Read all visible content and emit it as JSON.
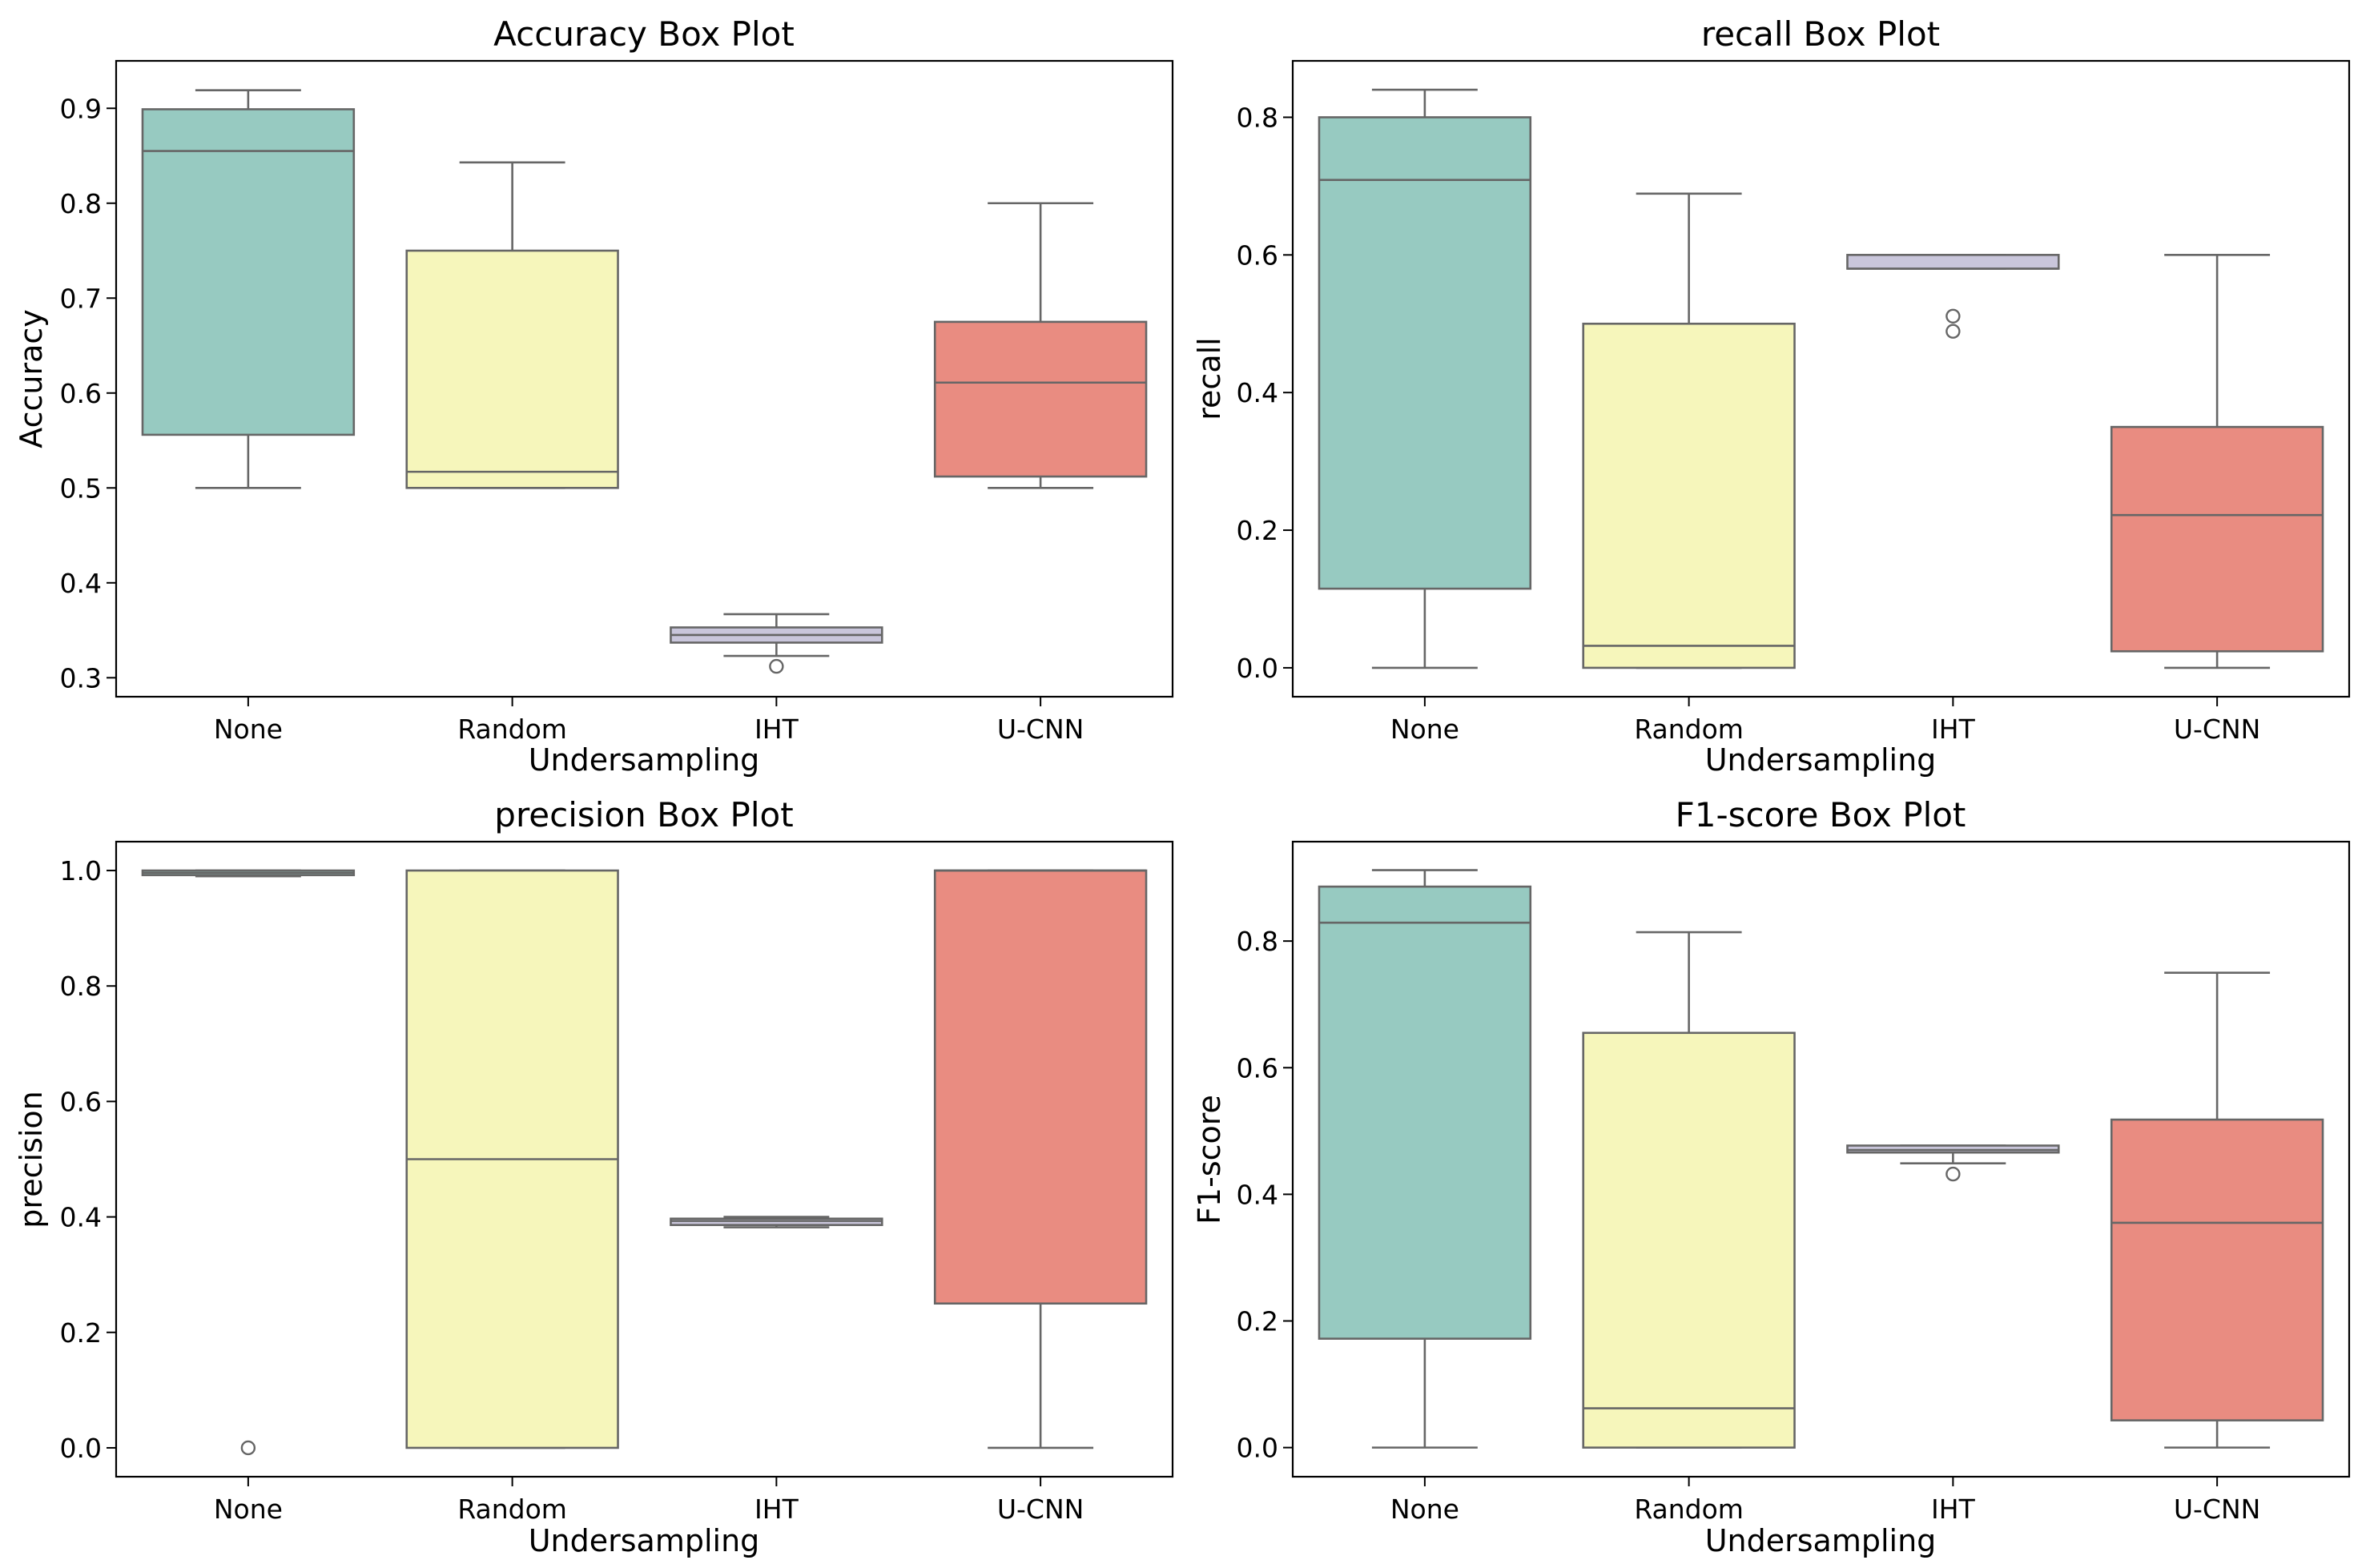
{
  "chart_data": [
    {
      "type": "box",
      "title": "Accuracy Box Plot",
      "xlabel": "Undersampling",
      "ylabel": "Accuracy",
      "categories": [
        "None",
        "Random",
        "IHT",
        "U-CNN"
      ],
      "ylim": [
        0.28,
        0.95
      ],
      "yticks": [
        0.3,
        0.4,
        0.5,
        0.6,
        0.7,
        0.8,
        0.9
      ],
      "ytick_labels": [
        "0.3",
        "0.4",
        "0.5",
        "0.6",
        "0.7",
        "0.8",
        "0.9"
      ],
      "boxes": [
        {
          "whislo": 0.5,
          "q1": 0.556,
          "med": 0.855,
          "q3": 0.899,
          "whishi": 0.919,
          "fliers": []
        },
        {
          "whislo": 0.5,
          "q1": 0.5,
          "med": 0.517,
          "q3": 0.75,
          "whishi": 0.843,
          "fliers": []
        },
        {
          "whislo": 0.323,
          "q1": 0.337,
          "med": 0.345,
          "q3": 0.353,
          "whishi": 0.367,
          "fliers": [
            0.312
          ]
        },
        {
          "whislo": 0.5,
          "q1": 0.512,
          "med": 0.611,
          "q3": 0.675,
          "whishi": 0.8,
          "fliers": []
        }
      ]
    },
    {
      "type": "box",
      "title": "recall Box Plot",
      "xlabel": "Undersampling",
      "ylabel": "recall",
      "categories": [
        "None",
        "Random",
        "IHT",
        "U-CNN"
      ],
      "ylim": [
        -0.042,
        0.882
      ],
      "yticks": [
        0.0,
        0.2,
        0.4,
        0.6,
        0.8
      ],
      "ytick_labels": [
        "0.0",
        "0.2",
        "0.4",
        "0.6",
        "0.8"
      ],
      "boxes": [
        {
          "whislo": 0.0,
          "q1": 0.115,
          "med": 0.709,
          "q3": 0.8,
          "whishi": 0.84,
          "fliers": []
        },
        {
          "whislo": 0.0,
          "q1": 0.0,
          "med": 0.032,
          "q3": 0.5,
          "whishi": 0.689,
          "fliers": []
        },
        {
          "whislo": 0.58,
          "q1": 0.58,
          "med": 0.58,
          "q3": 0.6,
          "whishi": 0.6,
          "fliers": [
            0.511,
            0.489
          ]
        },
        {
          "whislo": 0.0,
          "q1": 0.024,
          "med": 0.222,
          "q3": 0.35,
          "whishi": 0.6,
          "fliers": []
        }
      ]
    },
    {
      "type": "box",
      "title": "precision Box Plot",
      "xlabel": "Undersampling",
      "ylabel": "precision",
      "categories": [
        "None",
        "Random",
        "IHT",
        "U-CNN"
      ],
      "ylim": [
        -0.05,
        1.05
      ],
      "yticks": [
        0.0,
        0.2,
        0.4,
        0.6,
        0.8,
        1.0
      ],
      "ytick_labels": [
        "0.0",
        "0.2",
        "0.4",
        "0.6",
        "0.8",
        "1.0"
      ],
      "boxes": [
        {
          "whislo": 0.99,
          "q1": 0.992,
          "med": 0.996,
          "q3": 1.0,
          "whishi": 1.0,
          "fliers": [
            0.0
          ]
        },
        {
          "whislo": 0.0,
          "q1": 0.0,
          "med": 0.5,
          "q3": 1.0,
          "whishi": 1.0,
          "fliers": []
        },
        {
          "whislo": 0.382,
          "q1": 0.386,
          "med": 0.393,
          "q3": 0.397,
          "whishi": 0.4,
          "fliers": []
        },
        {
          "whislo": 0.0,
          "q1": 0.25,
          "med": 1.0,
          "q3": 1.0,
          "whishi": 1.0,
          "fliers": []
        }
      ]
    },
    {
      "type": "box",
      "title": "F1-score Box Plot",
      "xlabel": "Undersampling",
      "ylabel": "F1-score",
      "categories": [
        "None",
        "Random",
        "IHT",
        "U-CNN"
      ],
      "ylim": [
        -0.046,
        0.957
      ],
      "yticks": [
        0.0,
        0.2,
        0.4,
        0.6,
        0.8
      ],
      "ytick_labels": [
        "0.0",
        "0.2",
        "0.4",
        "0.6",
        "0.8"
      ],
      "boxes": [
        {
          "whislo": 0.0,
          "q1": 0.172,
          "med": 0.829,
          "q3": 0.886,
          "whishi": 0.912,
          "fliers": []
        },
        {
          "whislo": 0.0,
          "q1": 0.0,
          "med": 0.062,
          "q3": 0.655,
          "whishi": 0.814,
          "fliers": []
        },
        {
          "whislo": 0.449,
          "q1": 0.466,
          "med": 0.47,
          "q3": 0.477,
          "whishi": 0.477,
          "fliers": [
            0.432
          ]
        },
        {
          "whislo": 0.0,
          "q1": 0.043,
          "med": 0.355,
          "q3": 0.518,
          "whishi": 0.75,
          "fliers": []
        }
      ]
    }
  ],
  "colors": {
    "box_fills": [
      "#97cac1",
      "#f6f6bb",
      "#c9c6db",
      "#e98c81"
    ],
    "line": "#666666"
  }
}
